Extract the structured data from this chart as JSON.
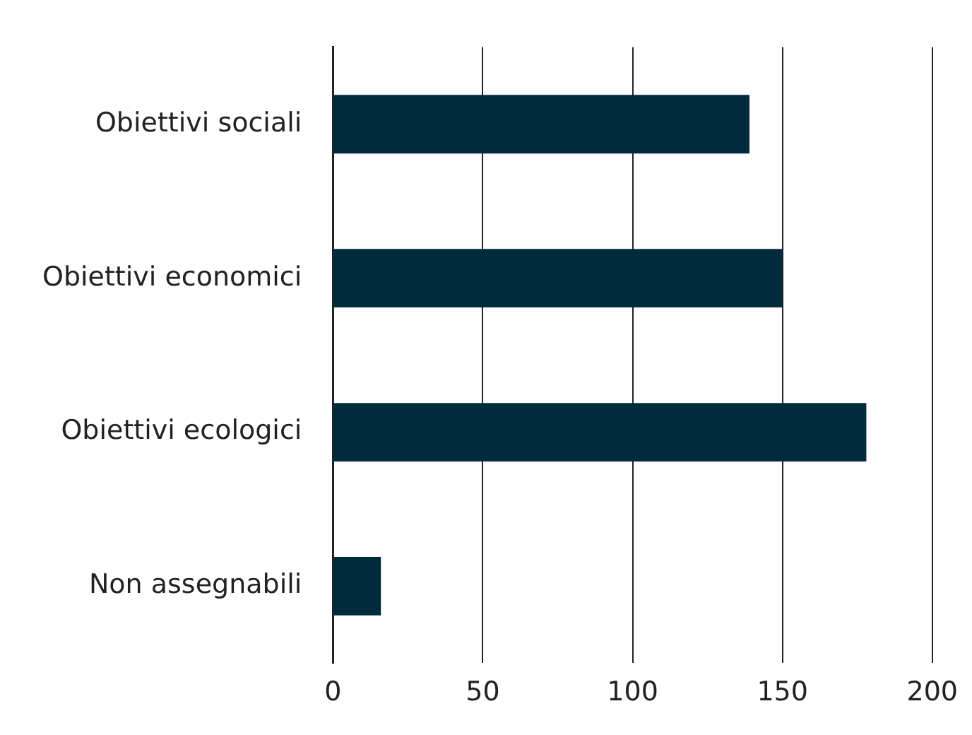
{
  "chart_data": {
    "type": "bar",
    "orientation": "horizontal",
    "categories": [
      "Obiettivi sociali",
      "Obiettivi economici",
      "Obiettivi ecologici",
      "Non assegnabili"
    ],
    "values": [
      139,
      150,
      178,
      16
    ],
    "color": "#002b3d",
    "xlim": [
      0,
      200
    ],
    "xticks": [
      0,
      50,
      100,
      150,
      200
    ],
    "grid": "x",
    "legend": false
  }
}
